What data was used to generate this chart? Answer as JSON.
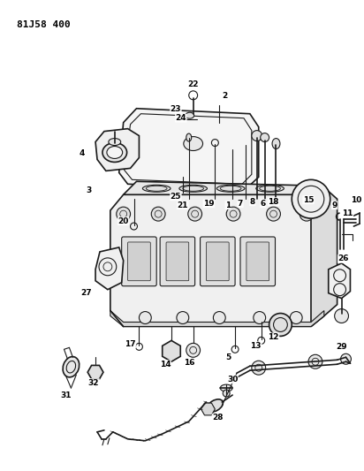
{
  "title": "81J58 400",
  "bg_color": "#ffffff",
  "line_color": "#1a1a1a",
  "text_color": "#000000",
  "fig_width": 4.12,
  "fig_height": 5.33,
  "dpi": 100
}
